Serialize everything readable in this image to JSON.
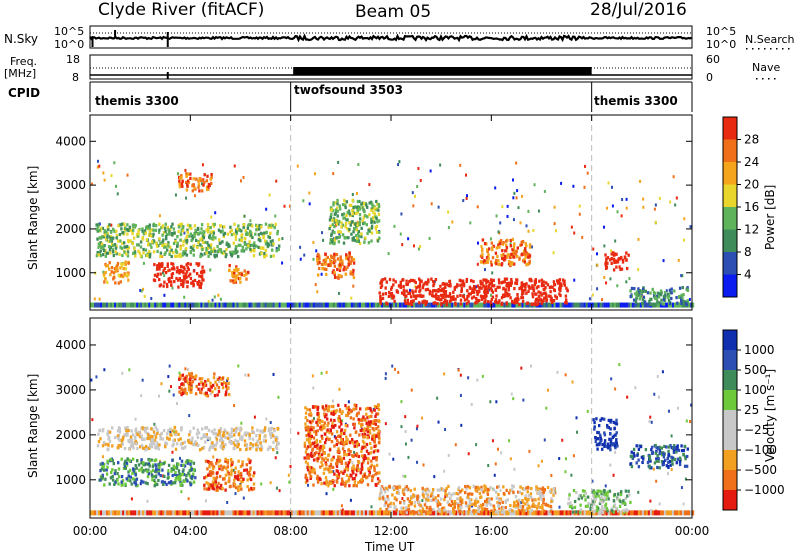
{
  "header": {
    "station": "Clyde River (fitACF)",
    "beam": "Beam 05",
    "date": "28/Jul/2016"
  },
  "left_labels": {
    "nsky": "N.Sky",
    "freq": "Freq.",
    "freq_unit": "[MHz]",
    "cpid": "CPID"
  },
  "right_labels": {
    "nsearch": "N.Search",
    "nave": "Nave"
  },
  "noise_panel": {
    "left_ticks": [
      "10^5",
      "10^0"
    ],
    "right_ticks": [
      "10^5",
      "10^0"
    ]
  },
  "freq_panel": {
    "left_ticks": [
      "18",
      "8"
    ],
    "right_ticks": [
      "60",
      "0"
    ]
  },
  "cpid_segments": [
    {
      "name": "themis 3300",
      "start": 0,
      "end": 8
    },
    {
      "name": "twofsound 3503",
      "start": 8,
      "end": 20
    },
    {
      "name": "themis 3300",
      "start": 20,
      "end": 24
    }
  ],
  "colors": {
    "power": [
      "#0a1cf0",
      "#2d4fb4",
      "#3f8c5a",
      "#5fb35a",
      "#e8d62c",
      "#f4a51c",
      "#f0701a",
      "#e82a10",
      "#d00000"
    ],
    "velocity": [
      "#e51a10",
      "#f0701a",
      "#f2a020",
      "#c8c8c8",
      "#c8c8c8",
      "#6ec93a",
      "#3f8c5a",
      "#2d4fb4",
      "#1030b0"
    ]
  },
  "chart_data": [
    {
      "type": "heatmap",
      "panel": "power",
      "ylabel": "Slant Range [km]",
      "yticks": [
        "1000",
        "2000",
        "3000",
        "4000"
      ],
      "ylim": [
        150,
        4600
      ],
      "xlim": [
        0,
        24
      ],
      "colorbar_label": "Power [dB]",
      "colorbar_ticks": [
        "4",
        "8",
        "12",
        "16",
        "20",
        "24",
        "28"
      ],
      "patches": [
        {
          "t0": 0.2,
          "t1": 7.5,
          "r0": 1400,
          "r1": 2150,
          "level": 3
        },
        {
          "t0": 0.5,
          "t1": 1.5,
          "r0": 800,
          "r1": 1300,
          "level": 5
        },
        {
          "t0": 2.5,
          "t1": 4.5,
          "r0": 700,
          "r1": 1250,
          "level": 8
        },
        {
          "t0": 3.5,
          "t1": 4.8,
          "r0": 2900,
          "r1": 3300,
          "level": 6
        },
        {
          "t0": 5.5,
          "t1": 6.3,
          "r0": 800,
          "r1": 1200,
          "level": 6
        },
        {
          "t0": 9.0,
          "t1": 10.5,
          "r0": 900,
          "r1": 1500,
          "level": 6
        },
        {
          "t0": 9.5,
          "t1": 11.5,
          "r0": 1700,
          "r1": 2700,
          "level": 3
        },
        {
          "t0": 11.5,
          "t1": 19.0,
          "r0": 300,
          "r1": 900,
          "level": 8
        },
        {
          "t0": 15.5,
          "t1": 17.5,
          "r0": 1200,
          "r1": 1800,
          "level": 6
        },
        {
          "t0": 20.5,
          "t1": 21.5,
          "r0": 1100,
          "r1": 1500,
          "level": 8
        },
        {
          "t0": 21.5,
          "t1": 23.8,
          "r0": 300,
          "r1": 700,
          "level": 2
        }
      ]
    },
    {
      "type": "heatmap",
      "panel": "velocity",
      "ylabel": "Slant Range [km]",
      "yticks": [
        "1000",
        "2000",
        "3000",
        "4000"
      ],
      "ylim": [
        150,
        4600
      ],
      "xlim": [
        0,
        24
      ],
      "xlabel": "Time UT",
      "xticks": [
        "00:00",
        "04:00",
        "08:00",
        "12:00",
        "16:00",
        "20:00",
        "00:00"
      ],
      "colorbar_label": "Velocity [m s⁻¹]",
      "colorbar_ticks": [
        "1000",
        "500",
        "100",
        "25",
        "−25",
        "−100",
        "−500",
        "−1000"
      ],
      "patches": [
        {
          "t0": 0.2,
          "t1": 7.5,
          "r0": 1700,
          "r1": 2200,
          "level": 3
        },
        {
          "t0": 0.3,
          "t1": 4.2,
          "r0": 900,
          "r1": 1500,
          "level": 6
        },
        {
          "t0": 4.5,
          "t1": 6.5,
          "r0": 800,
          "r1": 1500,
          "level": 1
        },
        {
          "t0": 3.5,
          "t1": 5.5,
          "r0": 2900,
          "r1": 3400,
          "level": 1
        },
        {
          "t0": 8.5,
          "t1": 11.5,
          "r0": 900,
          "r1": 2700,
          "level": 1
        },
        {
          "t0": 11.5,
          "t1": 18.5,
          "r0": 300,
          "r1": 900,
          "level": 2
        },
        {
          "t0": 19.0,
          "t1": 21.5,
          "r0": 300,
          "r1": 800,
          "level": 5
        },
        {
          "t0": 20.0,
          "t1": 21.0,
          "r0": 1700,
          "r1": 2400,
          "level": 8
        },
        {
          "t0": 21.5,
          "t1": 23.8,
          "r0": 1300,
          "r1": 1800,
          "level": 7
        }
      ]
    }
  ]
}
